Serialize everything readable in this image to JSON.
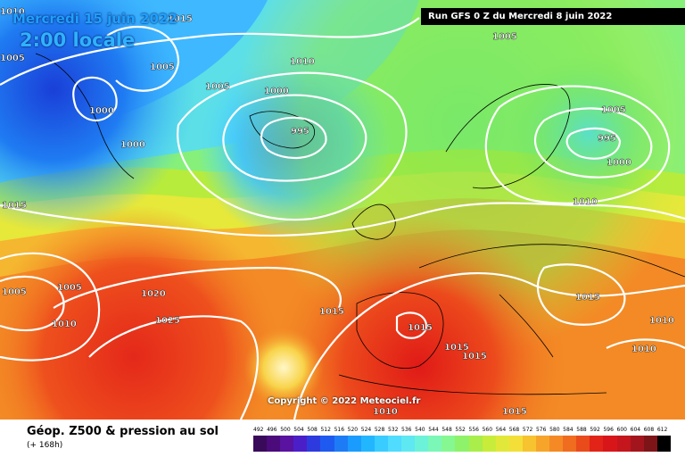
{
  "title": {
    "date": "Mercredi 15 juin 2022",
    "time": "2:00 locale"
  },
  "run_info": "Run GFS 0 Z du Mercredi 8 juin 2022",
  "copyright": "Copyright © 2022 Meteociel.fr",
  "footer": {
    "title": "Géop. Z500 & pression au sol",
    "subtitle": "(+ 168h)"
  },
  "legend": {
    "values": [
      "492",
      "496",
      "500",
      "504",
      "508",
      "512",
      "516",
      "520",
      "524",
      "528",
      "532",
      "536",
      "540",
      "544",
      "548",
      "552",
      "556",
      "560",
      "564",
      "568",
      "572",
      "576",
      "580",
      "584",
      "588",
      "592",
      "596",
      "600",
      "604",
      "608",
      "612"
    ],
    "colors": [
      "#3a0a5a",
      "#4b0b7a",
      "#5a12a0",
      "#4a1fc8",
      "#2d3bde",
      "#1f5af0",
      "#1d7cf5",
      "#1a9cff",
      "#22b6ff",
      "#39ccff",
      "#4fdcff",
      "#5ee8f2",
      "#6cf2d8",
      "#7bf7b7",
      "#86f891",
      "#8ef26b",
      "#a9ee4a",
      "#c8ec3a",
      "#e2e83a",
      "#f3df38",
      "#f7c32f",
      "#f7a52a",
      "#f58a25",
      "#f06c1f",
      "#ea4b1b",
      "#e12417",
      "#d8161a",
      "#c4161c",
      "#a3151c",
      "#7d1518",
      "#000000"
    ]
  },
  "isobar_labels": [
    "1010",
    "1015",
    "1005",
    "1005",
    "1000",
    "995",
    "1000",
    "1005",
    "1010",
    "1000",
    "1005",
    "1005",
    "995",
    "1000",
    "1010",
    "1015",
    "1005",
    "1005",
    "1010",
    "1020",
    "1025",
    "1015",
    "1015",
    "1015",
    "1015",
    "1015",
    "1010",
    "1015",
    "1010",
    "1010"
  ],
  "colors": {
    "isobar": "#ffffff",
    "coast": "#000000",
    "banner_bg": "#000000"
  }
}
